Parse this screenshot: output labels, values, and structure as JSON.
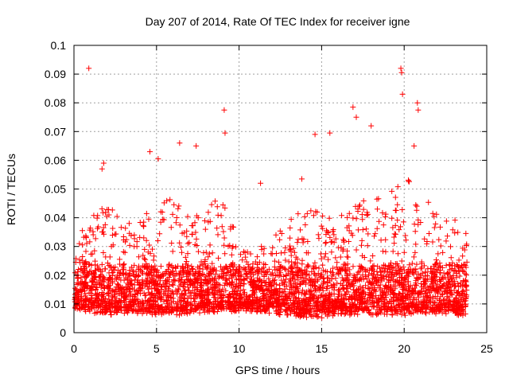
{
  "chart_data": {
    "type": "scatter",
    "title": "Day 207 of 2014, Rate Of TEC Index for receiver igne",
    "xlabel": "GPS time / hours",
    "ylabel": "ROTI / TECUs",
    "xlim": [
      0,
      25
    ],
    "ylim": [
      0,
      0.1
    ],
    "xticks": [
      0,
      5,
      10,
      15,
      20,
      25
    ],
    "yticks": [
      0,
      0.01,
      0.02,
      0.03,
      0.04,
      0.05,
      0.06,
      0.07,
      0.08,
      0.09,
      0.1
    ],
    "xtick_labels": [
      "0",
      "5",
      "10",
      "15",
      "20",
      "25"
    ],
    "ytick_labels": [
      "0",
      "0.01",
      "0.02",
      "0.03",
      "0.04",
      "0.05",
      "0.06",
      "0.07",
      "0.08",
      "0.09",
      "0.1"
    ],
    "grid": true,
    "marker": "+",
    "marker_color": "#ff0000",
    "series_name": "ROTI",
    "point_count_generated": 3800,
    "x_range_data": [
      0.05,
      23.8
    ],
    "notable_points": [
      {
        "x": 0.9,
        "y": 0.092
      },
      {
        "x": 9.1,
        "y": 0.0775
      },
      {
        "x": 9.15,
        "y": 0.0695
      },
      {
        "x": 6.4,
        "y": 0.066
      },
      {
        "x": 7.4,
        "y": 0.065
      },
      {
        "x": 4.6,
        "y": 0.063
      },
      {
        "x": 5.1,
        "y": 0.0605
      },
      {
        "x": 14.6,
        "y": 0.069
      },
      {
        "x": 15.5,
        "y": 0.0695
      },
      {
        "x": 16.9,
        "y": 0.0785
      },
      {
        "x": 17.1,
        "y": 0.075
      },
      {
        "x": 18.0,
        "y": 0.072
      },
      {
        "x": 19.8,
        "y": 0.092
      },
      {
        "x": 19.85,
        "y": 0.0905
      },
      {
        "x": 19.9,
        "y": 0.083
      },
      {
        "x": 20.8,
        "y": 0.08
      },
      {
        "x": 20.85,
        "y": 0.0775
      },
      {
        "x": 20.6,
        "y": 0.065
      },
      {
        "x": 1.8,
        "y": 0.059
      },
      {
        "x": 1.7,
        "y": 0.057
      },
      {
        "x": 13.8,
        "y": 0.0535
      },
      {
        "x": 11.3,
        "y": 0.052
      }
    ],
    "envelope_hours": [
      0,
      1,
      2,
      3,
      4,
      5,
      6,
      7,
      8,
      9,
      10,
      11,
      12,
      13,
      14,
      15,
      16,
      17,
      18,
      19,
      20,
      21,
      22,
      23,
      24
    ],
    "envelope_upper": [
      0.033,
      0.04,
      0.045,
      0.038,
      0.04,
      0.045,
      0.048,
      0.04,
      0.042,
      0.05,
      0.03,
      0.028,
      0.035,
      0.04,
      0.045,
      0.042,
      0.04,
      0.046,
      0.05,
      0.048,
      0.055,
      0.05,
      0.042,
      0.04,
      0.035
    ],
    "envelope_lower": [
      0.008,
      0.007,
      0.006,
      0.006,
      0.006,
      0.006,
      0.006,
      0.006,
      0.007,
      0.007,
      0.007,
      0.007,
      0.006,
      0.006,
      0.005,
      0.005,
      0.006,
      0.006,
      0.006,
      0.006,
      0.006,
      0.006,
      0.006,
      0.006,
      0.006
    ]
  }
}
